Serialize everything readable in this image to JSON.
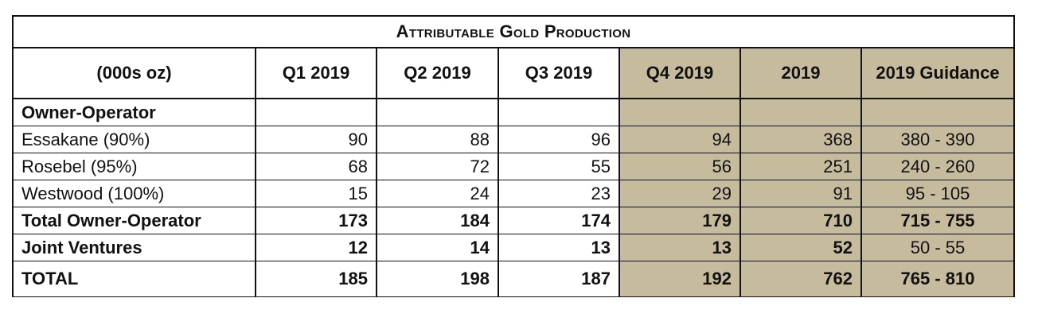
{
  "title": "Attributable Gold Production",
  "headers": [
    "(000s oz)",
    "Q1 2019",
    "Q2 2019",
    "Q3 2019",
    "Q4 2019",
    "2019",
    "2019 Guidance"
  ],
  "shade_color": "#c6bb9c",
  "rows": [
    {
      "label": "Owner-Operator",
      "q1": "",
      "q2": "",
      "q3": "",
      "q4": "",
      "y2019": "",
      "guidance": ""
    },
    {
      "label": "Essakane (90%)",
      "q1": "90",
      "q2": "88",
      "q3": "96",
      "q4": "94",
      "y2019": "368",
      "guidance": "380 - 390"
    },
    {
      "label": "Rosebel (95%)",
      "q1": "68",
      "q2": "72",
      "q3": "55",
      "q4": "56",
      "y2019": "251",
      "guidance": "240 - 260"
    },
    {
      "label": "Westwood (100%)",
      "q1": "15",
      "q2": "24",
      "q3": "23",
      "q4": "29",
      "y2019": "91",
      "guidance": "95 - 105"
    },
    {
      "label": "Total Owner-Operator",
      "q1": "173",
      "q2": "184",
      "q3": "174",
      "q4": "179",
      "y2019": "710",
      "guidance": "715 - 755"
    },
    {
      "label": "Joint Ventures",
      "q1": "12",
      "q2": "14",
      "q3": "13",
      "q4": "13",
      "y2019": "52",
      "guidance": "50 - 55"
    },
    {
      "label": "TOTAL",
      "q1": "185",
      "q2": "198",
      "q3": "187",
      "q4": "192",
      "y2019": "762",
      "guidance": "765 - 810"
    }
  ]
}
